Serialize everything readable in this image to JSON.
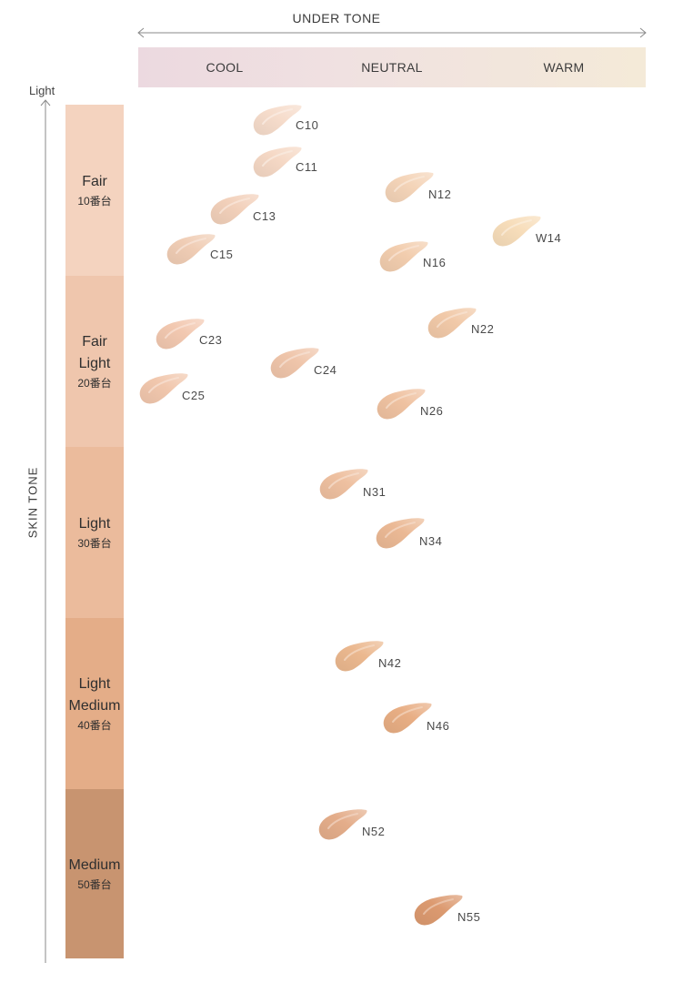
{
  "under_tone": {
    "title": "UNDER TONE",
    "columns": [
      "COOL",
      "NEUTRAL",
      "WARM"
    ]
  },
  "skin_tone": {
    "title": "SKIN TONE",
    "top_label": "Light"
  },
  "categories": [
    {
      "lines": [
        "Fair"
      ],
      "code": "10番台",
      "color": "#f4d3bf"
    },
    {
      "lines": [
        "Fair",
        "Light"
      ],
      "code": "20番台",
      "color": "#efc6ad"
    },
    {
      "lines": [
        "Light"
      ],
      "code": "30番台",
      "color": "#ebbb9c"
    },
    {
      "lines": [
        "Light",
        "Medium"
      ],
      "code": "40番台",
      "color": "#e4ad88"
    },
    {
      "lines": [
        "Medium"
      ],
      "code": "50番台",
      "color": "#c89470"
    }
  ],
  "shades": [
    {
      "code": "C10",
      "color": "#f6dccb"
    },
    {
      "code": "C11",
      "color": "#f5d8c5"
    },
    {
      "code": "C13",
      "color": "#f2d0ba"
    },
    {
      "code": "C15",
      "color": "#f0cdb5"
    },
    {
      "code": "N12",
      "color": "#f4d4b8"
    },
    {
      "code": "N16",
      "color": "#f2cdae"
    },
    {
      "code": "W14",
      "color": "#f7ddba"
    },
    {
      "code": "C23",
      "color": "#f2c8b0"
    },
    {
      "code": "C24",
      "color": "#efc5aa"
    },
    {
      "code": "C25",
      "color": "#f1c7ad"
    },
    {
      "code": "N22",
      "color": "#f1c9a8"
    },
    {
      "code": "N26",
      "color": "#efc2a1"
    },
    {
      "code": "N31",
      "color": "#eec0a0"
    },
    {
      "code": "N34",
      "color": "#ebb995"
    },
    {
      "code": "N42",
      "color": "#ebb88f"
    },
    {
      "code": "N46",
      "color": "#e8ae84"
    },
    {
      "code": "N52",
      "color": "#e4ad8a"
    },
    {
      "code": "N55",
      "color": "#dc9a70"
    }
  ]
}
